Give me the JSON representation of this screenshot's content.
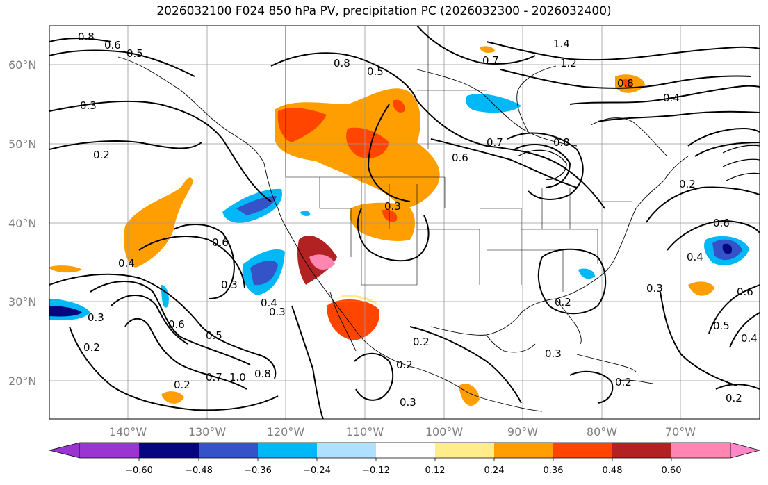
{
  "title": "2026032100 F024 850 hPa PV, precipitation PC (2026032300 - 2026032400)",
  "lat_labels": [
    "60°N",
    "50°N",
    "40°N",
    "30°N",
    "20°N"
  ],
  "lon_labels": [
    "140°W",
    "130°W",
    "120°W",
    "110°W",
    "100°W",
    "90°W",
    "80°W",
    "70°W"
  ],
  "contour_labels": [
    "0.8",
    "0.6",
    "0.5",
    "0.3",
    "0.2",
    "0.4",
    "0.6",
    "0.3",
    "0.4",
    "0.3",
    "0.6",
    "0.5",
    "0.7",
    "1.0",
    "0.8",
    "0.2",
    "0.2",
    "0.3",
    "0.8",
    "0.5",
    "0.3",
    "0.2",
    "0.7",
    "1.4",
    "1.2",
    "0.8",
    "0.4",
    "0.7",
    "0.6",
    "0.8",
    "0.2",
    "0.3",
    "0.2",
    "0.3",
    "0.2",
    "0.2",
    "0.6",
    "0.4",
    "0.3",
    "0.6",
    "0.5",
    "0.4",
    "0.2"
  ],
  "colorbar": {
    "ticks": [
      "−0.60",
      "−0.48",
      "−0.36",
      "−0.24",
      "−0.12",
      "0.12",
      "0.24",
      "0.36",
      "0.48",
      "0.60"
    ],
    "colors": [
      "#9a35d1",
      "#06067f",
      "#3553c9",
      "#00b8f5",
      "#b0e0ff",
      "#ffffff",
      "#ffec8a",
      "#ff9e00",
      "#ff4500",
      "#b22222",
      "#ff86b0",
      "#ff86c8"
    ]
  }
}
